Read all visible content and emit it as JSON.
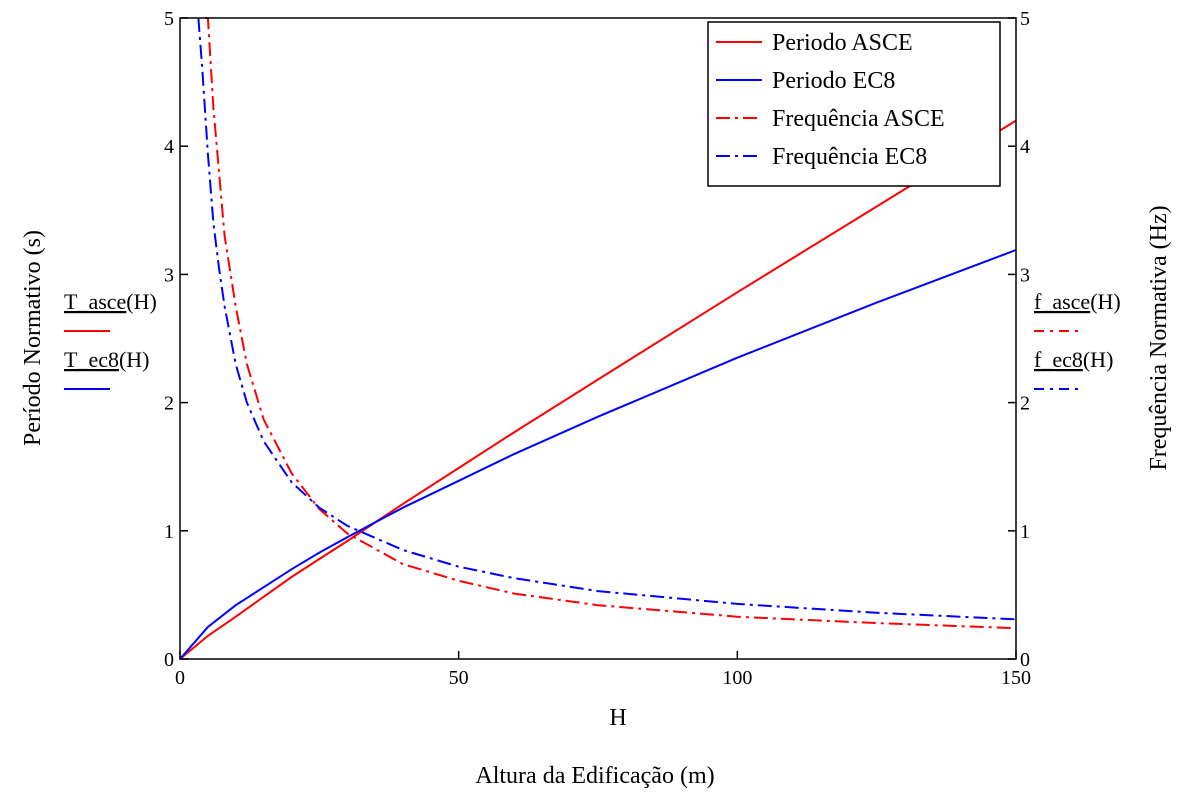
{
  "chart_data": {
    "type": "line",
    "xlabel": "Altura da Edificação (m)",
    "x_var_label": "H",
    "ylabel_left": "Período Normativo (s)",
    "ylabel_right": "Frequência Normativa (Hz)",
    "xlim": [
      0,
      150
    ],
    "ylim_left": [
      0,
      5
    ],
    "ylim_right": [
      0,
      5
    ],
    "x_ticks": [
      "0",
      "50",
      "100",
      "150"
    ],
    "y_ticks": [
      "0",
      "1",
      "2",
      "3",
      "4",
      "5"
    ],
    "grid": false,
    "legend_position": "top-right",
    "left_var_labels": [
      {
        "name": "T_asce",
        "arg": "H",
        "color": "#ff0000",
        "dash": "solid"
      },
      {
        "name": "T_ec8",
        "arg": "H",
        "color": "#0000ff",
        "dash": "solid"
      }
    ],
    "right_var_labels": [
      {
        "name": "f_asce",
        "arg": "H",
        "color": "#ff0000",
        "dash": "dashdot"
      },
      {
        "name": "f_ec8",
        "arg": "H",
        "color": "#0000ff",
        "dash": "dashdot"
      }
    ],
    "series": [
      {
        "name": "Periodo ASCE",
        "axis": "left",
        "color": "#ff0000",
        "dash": "solid",
        "x": [
          0,
          5,
          10,
          20,
          25,
          30,
          40,
          50,
          60,
          75,
          100,
          125,
          150
        ],
        "y": [
          0,
          0.18,
          0.33,
          0.64,
          0.78,
          0.92,
          1.21,
          1.49,
          1.77,
          2.18,
          2.86,
          3.53,
          4.2
        ]
      },
      {
        "name": "Periodo EC8",
        "axis": "left",
        "color": "#0000ff",
        "dash": "solid",
        "x": [
          0,
          5,
          10,
          20,
          25,
          30,
          40,
          50,
          60,
          75,
          100,
          125,
          150
        ],
        "y": [
          0,
          0.25,
          0.42,
          0.7,
          0.83,
          0.95,
          1.18,
          1.39,
          1.6,
          1.89,
          2.35,
          2.78,
          3.19
        ]
      },
      {
        "name": "Frequência ASCE",
        "axis": "right",
        "color": "#ff0000",
        "dash": "dashdot",
        "x": [
          4.5,
          5,
          6,
          7,
          8,
          10,
          12,
          15,
          20,
          25,
          30,
          40,
          50,
          60,
          75,
          100,
          125,
          150
        ],
        "y": [
          5.0,
          5.0,
          4.3,
          3.8,
          3.3,
          2.75,
          2.3,
          1.87,
          1.45,
          1.17,
          0.98,
          0.74,
          0.61,
          0.51,
          0.42,
          0.33,
          0.28,
          0.24
        ]
      },
      {
        "name": "Frequência EC8",
        "axis": "right",
        "color": "#0000ff",
        "dash": "dashdot",
        "x": [
          3.3,
          4,
          5,
          6,
          7,
          8,
          10,
          12,
          15,
          20,
          25,
          30,
          40,
          50,
          60,
          75,
          100,
          125,
          150
        ],
        "y": [
          5.0,
          4.6,
          3.94,
          3.4,
          3.05,
          2.75,
          2.3,
          2.0,
          1.7,
          1.38,
          1.18,
          1.04,
          0.85,
          0.72,
          0.63,
          0.53,
          0.43,
          0.36,
          0.31
        ]
      }
    ]
  }
}
